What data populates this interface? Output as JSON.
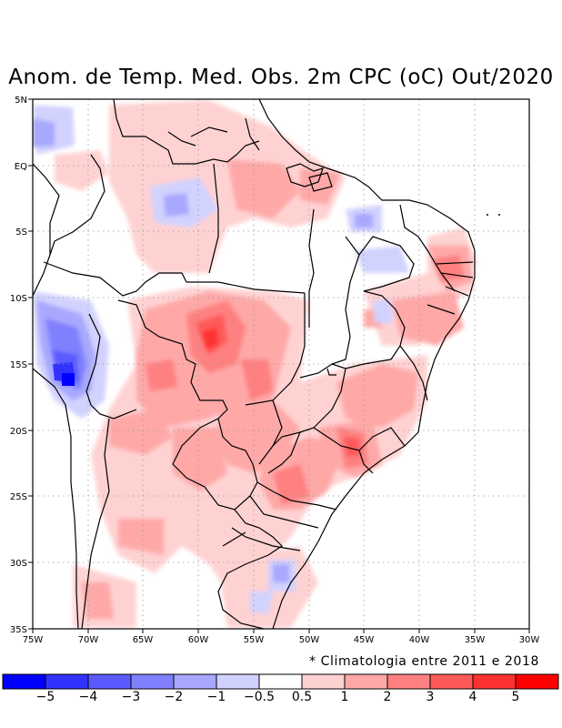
{
  "title": "Anom. de Temp. Med. Obs. 2m CPC (oC) Out/2020",
  "note": "* Climatologia entre 2011 e 2018",
  "map": {
    "lon_range": [
      -75,
      -30
    ],
    "lat_range": [
      -35,
      5
    ],
    "x_ticks": [
      "75W",
      "70W",
      "65W",
      "60W",
      "55W",
      "50W",
      "45W",
      "40W",
      "35W",
      "30W"
    ],
    "y_ticks": [
      "5N",
      "EQ",
      "5S",
      "10S",
      "15S",
      "20S",
      "25S",
      "30S",
      "35S"
    ]
  },
  "colorbar": {
    "labels": [
      "−5",
      "−4",
      "−3",
      "−2",
      "−1",
      "−0.5",
      "0.5",
      "1",
      "2",
      "3",
      "4",
      "5"
    ],
    "colors": [
      "#0000ff",
      "#3232ff",
      "#5a5aff",
      "#8080ff",
      "#a8a8ff",
      "#d2d2ff",
      "#ffffff",
      "#ffd2d2",
      "#ffa8a8",
      "#ff8080",
      "#ff5a5a",
      "#ff3232",
      "#ff0000"
    ]
  }
}
